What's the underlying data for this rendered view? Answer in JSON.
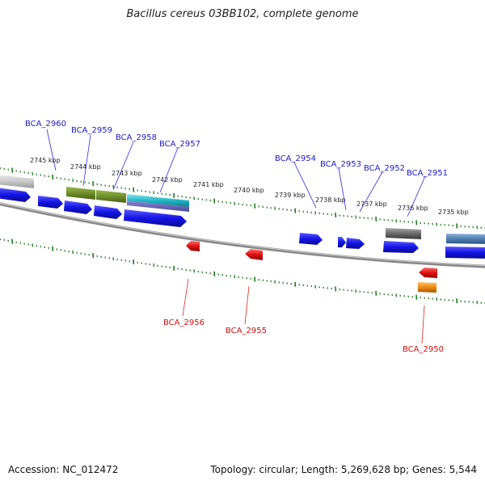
{
  "title": "Bacillus cereus 03BB102, complete genome",
  "footer": {
    "accession": "Accession: NC_012472",
    "summary": "Topology: circular; Length: 5,269,628 bp; Genes: 5,544"
  },
  "ruler": {
    "labels": [
      "2745 kbp",
      "2744 kbp",
      "2743 kbp",
      "2742 kbp",
      "2741 kbp",
      "2740 kbp",
      "2739 kbp",
      "2738 kbp",
      "2737 kbp",
      "2736 kbp",
      "2735 kbp"
    ]
  },
  "colors": {
    "forward_cds": "#1414e6",
    "reverse_cds": "#e01010",
    "ticks": "#1a7a1a",
    "backbone": "#888888",
    "label_forward": "#1a1acc",
    "label_reverse": "#cc1111",
    "olive": "#6f8f2a",
    "cyan": "#20b8c8",
    "gray": "#6a6a6a",
    "steel": "#4f7fb0",
    "orange": "#f08a10"
  },
  "gene_labels_forward": [
    "BCA_2960",
    "BCA_2959",
    "BCA_2958",
    "BCA_2957",
    "BCA_2954",
    "BCA_2953",
    "BCA_2952",
    "BCA_2951"
  ],
  "gene_labels_reverse": [
    "BCA_2956",
    "BCA_2955",
    "BCA_2950"
  ]
}
